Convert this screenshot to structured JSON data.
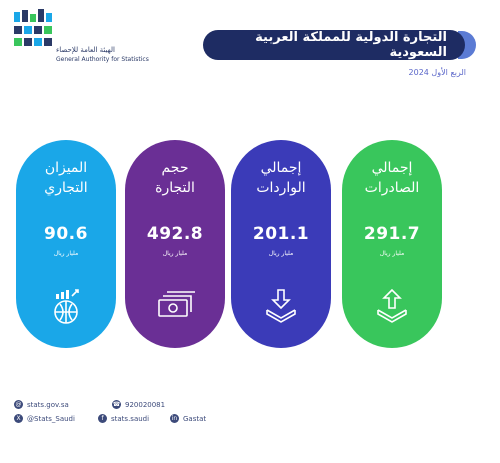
{
  "header": {
    "org_name_ar": "الهيئة العامة للإحصاء",
    "org_name_en": "General Authority for Statistics",
    "title": "التجارة الدولية للمملكة العربية السعودية",
    "subtitle": "الربع الأول 2024"
  },
  "cards": [
    {
      "label_line1": "إجمالي",
      "label_line2": "الصادرات",
      "value": "291.7",
      "unit": "مليار ريال",
      "icon": "export-box-up-arrow-icon",
      "color": "#39c65c"
    },
    {
      "label_line1": "إجمالي",
      "label_line2": "الواردات",
      "value": "201.1",
      "unit": "مليار ريال",
      "icon": "import-box-down-arrow-icon",
      "color": "#3b3bb8"
    },
    {
      "label_line1": "حجم",
      "label_line2": "التجارة",
      "value": "492.8",
      "unit": "مليار ريال",
      "icon": "money-stack-icon",
      "color": "#6a2f95"
    },
    {
      "label_line1": "الميزان",
      "label_line2": "التجاري",
      "value": "90.6",
      "unit": "مليار ريال",
      "icon": "globe-growth-chart-icon",
      "color": "#1aa7e8"
    }
  ],
  "footer": {
    "website": "stats.gov.sa",
    "phone": "920020081",
    "twitter": "@Stats_Saudi",
    "facebook": "stats.saudi",
    "linkedin": "Gastat"
  }
}
